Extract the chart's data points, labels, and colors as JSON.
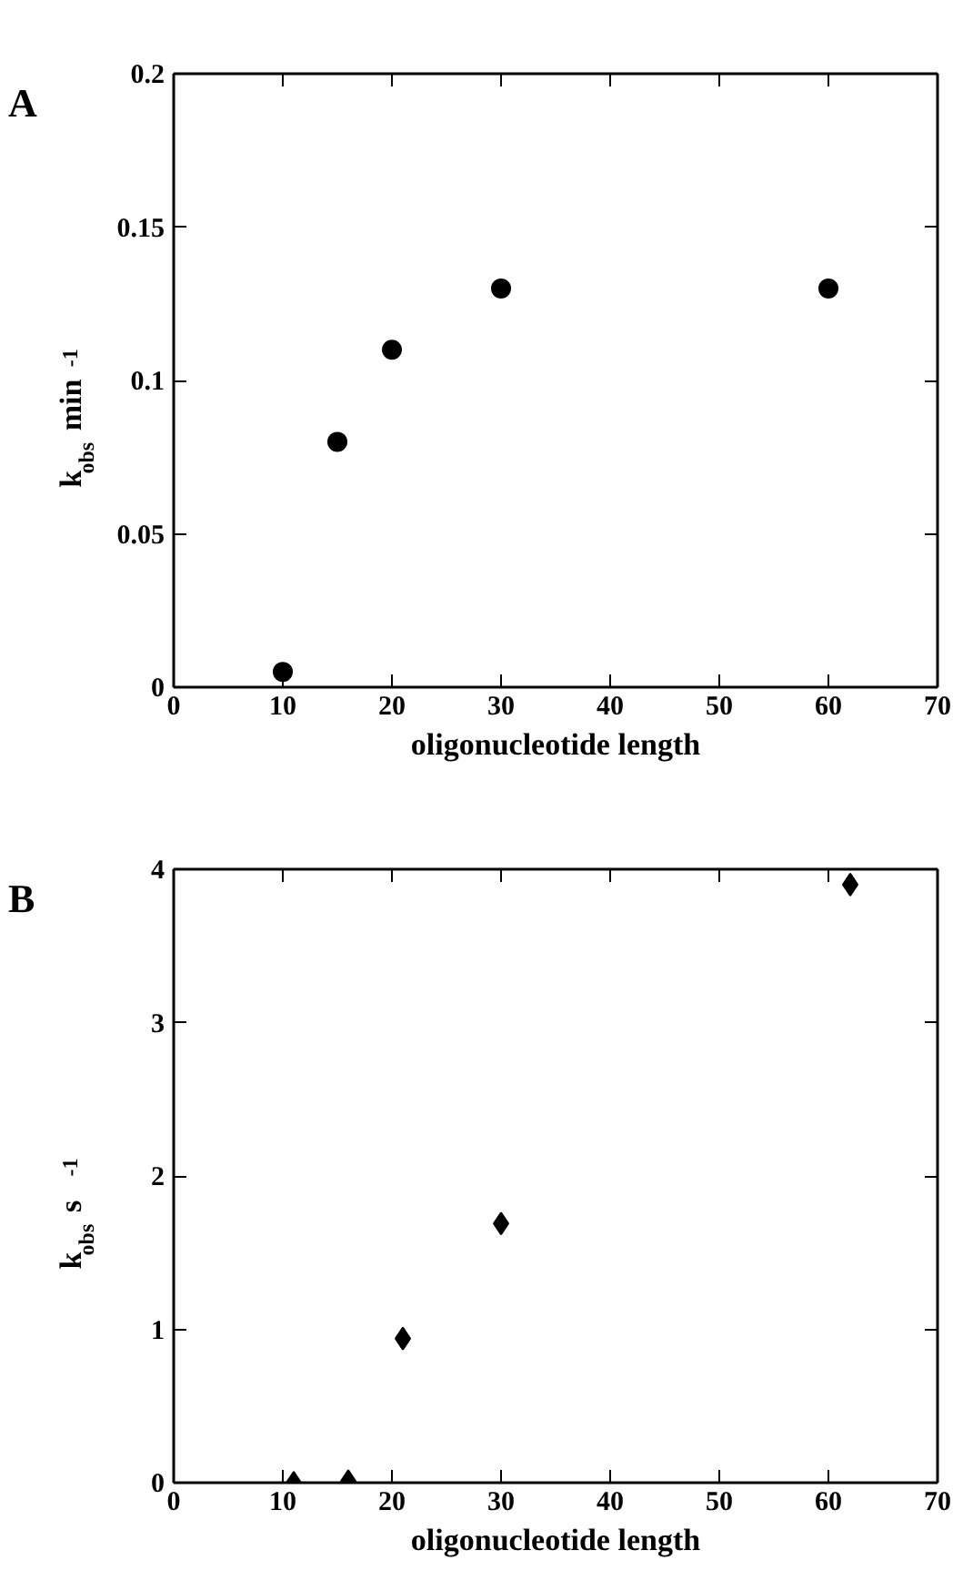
{
  "chart_data": [
    {
      "type": "scatter",
      "title": "A",
      "xlabel": "oligonucleotide length",
      "ylabel": "k$_{obs}$ min$^{-1}$",
      "marker": "circle",
      "x": [
        10,
        15,
        20,
        30,
        60
      ],
      "series": [
        {
          "color": "#000000",
          "values": [
            0.005,
            0.08,
            0.11,
            0.13,
            0.13
          ]
        }
      ],
      "xlim": [
        0,
        70
      ],
      "xticks": [
        0,
        10,
        20,
        30,
        40,
        50,
        60,
        70
      ],
      "ylim": [
        0,
        0.2
      ],
      "yticks": [
        0,
        0.05,
        0.1,
        0.15,
        0.2
      ],
      "grid": false
    },
    {
      "type": "scatter",
      "title": "B",
      "xlabel": "oligonucleotide length",
      "ylabel": "k$_{obs}$ s$^{-1}$",
      "marker": "diamond",
      "x": [
        11,
        16,
        21,
        30,
        62
      ],
      "series": [
        {
          "color": "#000000",
          "values": [
            0,
            0.01,
            0.94,
            1.69,
            3.9
          ]
        }
      ],
      "xlim": [
        0,
        70
      ],
      "xticks": [
        0,
        10,
        20,
        30,
        40,
        50,
        60,
        70
      ],
      "ylim": [
        0,
        4
      ],
      "yticks": [
        0,
        1,
        2,
        3,
        4
      ],
      "grid": false
    }
  ]
}
